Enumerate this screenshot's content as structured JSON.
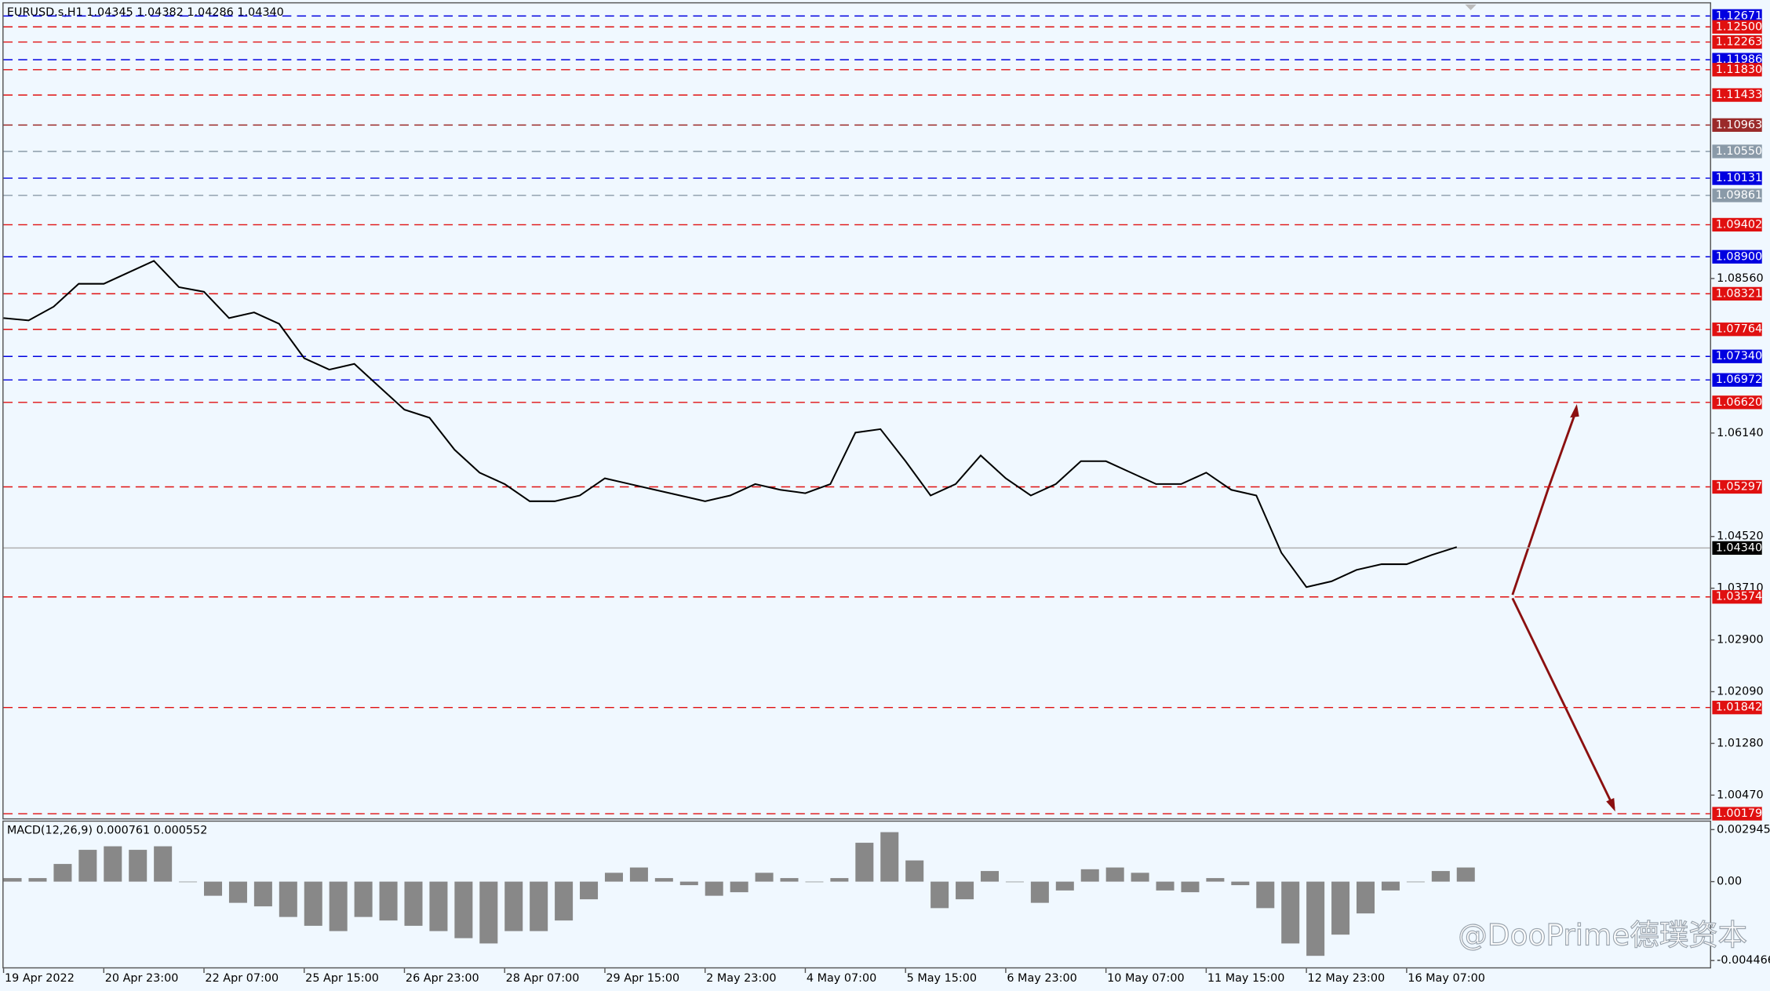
{
  "chart_data": [
    {
      "type": "line",
      "title": "EURUSD.s,H1  1.04345 1.04382 1.04286 1.04340",
      "color": "#000000",
      "categories": [
        "19 Apr 2022",
        null,
        null,
        null,
        "20 Apr 23:00",
        null,
        null,
        null,
        "22 Apr 07:00",
        null,
        null,
        null,
        "25 Apr 15:00",
        null,
        null,
        null,
        "26 Apr 23:00",
        null,
        null,
        null,
        "28 Apr 07:00",
        null,
        null,
        null,
        "29 Apr 15:00",
        null,
        null,
        null,
        "2 May 23:00",
        null,
        null,
        null,
        "4 May 07:00",
        null,
        null,
        null,
        "5 May 15:00",
        null,
        null,
        null,
        "6 May 23:00",
        null,
        null,
        null,
        "10 May 07:00",
        null,
        null,
        null,
        "11 May 15:00",
        null,
        null,
        null,
        "12 May 23:00",
        null,
        null,
        null,
        "16 May 07:00",
        null,
        null
      ],
      "values": [
        1.0794,
        1.07904,
        1.08119,
        1.08477,
        1.08477,
        1.08657,
        1.08836,
        1.08424,
        1.08352,
        1.0794,
        1.08029,
        1.0785,
        1.07312,
        1.07133,
        1.07223,
        1.06864,
        1.06506,
        1.0638,
        1.05879,
        1.0552,
        1.05341,
        1.05072,
        1.05072,
        1.05162,
        1.05431,
        1.05341,
        1.05251,
        1.05162,
        1.05072,
        1.05162,
        1.05341,
        1.05251,
        1.05198,
        1.05341,
        1.06147,
        1.06201,
        1.05699,
        1.05162,
        1.05341,
        1.05789,
        1.05431,
        1.05162,
        1.05341,
        1.05699,
        1.05699,
        1.0552,
        1.05341,
        1.05341,
        1.0552,
        1.05251,
        1.05162,
        1.04266,
        1.03728,
        1.03818,
        1.03997,
        1.04086,
        1.04086,
        1.0423,
        1.04355
      ],
      "ylim": [
        1.00107,
        1.12868
      ],
      "yticks": [
        {
          "value": 1.0856,
          "label": "1.08560"
        },
        {
          "value": 1.0614,
          "label": "1.06140"
        },
        {
          "value": 1.0452,
          "label": "1.04520"
        },
        {
          "value": 1.0371,
          "label": "1.03710"
        },
        {
          "value": 1.029,
          "label": "1.02900"
        },
        {
          "value": 1.0209,
          "label": "1.02090"
        },
        {
          "value": 1.0128,
          "label": "1.01280"
        },
        {
          "value": 1.0047,
          "label": "1.00470"
        }
      ],
      "levels": [
        {
          "value": 1.12671,
          "label": "1.12671",
          "color": "#0000e0"
        },
        {
          "value": 1.125,
          "label": "1.12500",
          "color": "#e01010"
        },
        {
          "value": 1.12263,
          "label": "1.12263",
          "color": "#e01010"
        },
        {
          "value": 1.11986,
          "label": "1.11986",
          "color": "#0000e0"
        },
        {
          "value": 1.1183,
          "label": "1.11830",
          "color": "#e01010"
        },
        {
          "value": 1.11433,
          "label": "1.11433",
          "color": "#e01010"
        },
        {
          "value": 1.10963,
          "label": "1.10963",
          "color": "#9a2a2a"
        },
        {
          "value": 1.1055,
          "label": "1.10550",
          "color": "#8a9aa8"
        },
        {
          "value": 1.10131,
          "label": "1.10131",
          "color": "#0000e0"
        },
        {
          "value": 1.09861,
          "label": "1.09861",
          "color": "#8a9aa8"
        },
        {
          "value": 1.09402,
          "label": "1.09402",
          "color": "#e01010"
        },
        {
          "value": 1.089,
          "label": "1.08900",
          "color": "#0000e0"
        },
        {
          "value": 1.08321,
          "label": "1.08321",
          "color": "#e01010"
        },
        {
          "value": 1.07764,
          "label": "1.07764",
          "color": "#e01010"
        },
        {
          "value": 1.0734,
          "label": "1.07340",
          "color": "#0000e0"
        },
        {
          "value": 1.06972,
          "label": "1.06972",
          "color": "#0000e0"
        },
        {
          "value": 1.0662,
          "label": "1.06620",
          "color": "#e01010"
        },
        {
          "value": 1.05297,
          "label": "1.05297",
          "color": "#e01010"
        },
        {
          "value": 1.03574,
          "label": "1.03574",
          "color": "#e01010"
        },
        {
          "value": 1.01842,
          "label": "1.01842",
          "color": "#e01010"
        },
        {
          "value": 1.00179,
          "label": "1.00179",
          "color": "#e01010"
        }
      ],
      "current": {
        "value": 1.0434,
        "label": "1.04340"
      }
    },
    {
      "type": "bar",
      "title": "MACD(12,26,9) 0.000761 0.000552",
      "color": "#888888",
      "values": [
        0.0002,
        0.0002,
        0.001,
        0.0018,
        0.002,
        0.0018,
        0.002,
        0,
        -0.0008,
        -0.0012,
        -0.0014,
        -0.002,
        -0.0025,
        -0.0028,
        -0.002,
        -0.0022,
        -0.0025,
        -0.0028,
        -0.0032,
        -0.0035,
        -0.0028,
        -0.0028,
        -0.0022,
        -0.001,
        0.0005,
        0.0008,
        0.0002,
        -0.0002,
        -0.0008,
        -0.0006,
        0.0005,
        0.0002,
        0,
        0.0002,
        0.0022,
        0.0028,
        0.0012,
        -0.0015,
        -0.001,
        0.0006,
        0,
        -0.0012,
        -0.0005,
        0.0007,
        0.0008,
        0.0005,
        -0.0005,
        -0.0006,
        0.0002,
        -0.0002,
        -0.0015,
        -0.0035,
        -0.0042,
        -0.003,
        -0.0018,
        -0.0005,
        0,
        0.0006,
        0.0008
      ],
      "ylim": [
        -0.004913,
        0.003328
      ],
      "yticks": [
        0.002945,
        {
          "value": 0,
          "label": "0.00"
        },
        -0.004466
      ]
    }
  ],
  "watermark": "@DooPrime德璞资本"
}
